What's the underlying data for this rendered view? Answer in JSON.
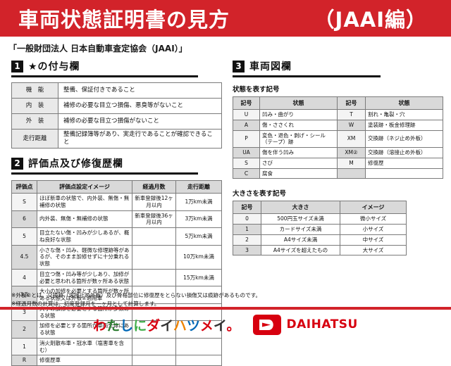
{
  "header": {
    "title": "車両状態証明書の見方",
    "edition": "（JAAI編）"
  },
  "subtitle": "「一般財団法人 日本自動車査定協会（JAAI）」",
  "sections": {
    "star": {
      "num": "1",
      "title": "★の付与欄",
      "rows": [
        [
          "機　能",
          "整備、保証付きであること"
        ],
        [
          "内　装",
          "補修の必要な目立つ損傷、悪臭等がないこと"
        ],
        [
          "外　装",
          "補修の必要な目立つ損傷がないこと"
        ],
        [
          "走行距離",
          "整備記録簿等があり、実走行であることが確認できること"
        ]
      ]
    },
    "evaluation": {
      "num": "2",
      "title": "評価点及び修復歴欄",
      "headers": [
        "評価点",
        "評価点設定イメージ",
        "経過月数",
        "走行距離"
      ],
      "rows": [
        [
          "S",
          "ほぼ新車の状態で、内外装、無傷・無補修の状態",
          "新車登録後12ヶ月以内",
          "1万km未満"
        ],
        [
          "6",
          "内外装、無傷・無補修の状態",
          "新車登録後36ヶ月以内",
          "3万km未満"
        ],
        [
          "5",
          "目立たない傷・凹みが少しあるが、概ね良好な状態",
          "",
          "5万km未満"
        ],
        [
          "4.5",
          "小さな傷・凹み、軽微な修理跡等があるが、そのまま加修せずに十分乗れる状態",
          "",
          "10万km未満"
        ],
        [
          "4",
          "目立つ傷・凹み等が少しあり、加修が必要と思われる箇所が数ヶ所ある状態",
          "",
          "15万km未満"
        ],
        [
          "3.5",
          "大小の加修を必要とする箇所が数ヶ所ある状態又は外板②適用車",
          "",
          ""
        ],
        [
          "3",
          "大小の加修を必要とする箇所が多数ある状態",
          "",
          ""
        ],
        [
          "2",
          "加修を必要とする箇所が車両全体にある状態",
          "",
          ""
        ],
        [
          "1",
          "消火剤散布車・冠水車（塩害車を含む）",
          "",
          ""
        ],
        [
          "R",
          "修復歴車",
          "",
          ""
        ]
      ]
    },
    "diagram": {
      "num": "3",
      "title": "車両図欄",
      "state_label": "状態を表す記号",
      "state_headers": [
        "記号",
        "状態",
        "記号",
        "状態"
      ],
      "state_rows": [
        [
          "U",
          "凹み・曲がり",
          "T",
          "割れ・亀裂・穴"
        ],
        [
          "A",
          "傷・ささくれ",
          "W",
          "塗装跡・板金修理跡"
        ],
        [
          "P",
          "変色・退色・剥げ・シール（テープ）跡",
          "XM",
          "交換跡（ネジ止め外板）"
        ],
        [
          "UA",
          "傷を伴う凹み",
          "XM②",
          "交換跡（溶接止め外板）"
        ],
        [
          "S",
          "さび",
          "M",
          "修復歴"
        ],
        [
          "C",
          "腐食",
          "",
          ""
        ]
      ],
      "size_label": "大きさを表す記号",
      "size_headers": [
        "記号",
        "大きさ",
        "イメージ"
      ],
      "size_rows": [
        [
          "0",
          "500円玉サイズ未満",
          "微小サイズ"
        ],
        [
          "1",
          "カードサイズ未満",
          "小サイズ"
        ],
        [
          "2",
          "A4サイズ未満",
          "中サイズ"
        ],
        [
          "3",
          "A4サイズを超えたもの",
          "大サイズ"
        ]
      ]
    }
  },
  "notes": [
    "※外板②とは、交換跡（溶接止め外板）及び骨格部位に修復歴をとらない損傷又は痕跡があるものです。",
    "※経過月数の計算は、初度登録月を一ヶ月として計算します。"
  ],
  "footer": {
    "slogan": "わたしにダイハツメイ。",
    "slogan_colors": [
      "#d7000f",
      "#2e7d32",
      "#0068b7",
      "#3fae49",
      "#d7000f",
      "#333333",
      "#f08300",
      "#0068b7",
      "#d7000f",
      "#333333",
      "#d7000f"
    ],
    "brand": "DAIHATSU"
  },
  "colors": {
    "banner_red": "#d2232a",
    "daihatsu_red": "#d7000f",
    "table_border": "#7a7a7a",
    "header_cell_gray": "#d9d9d9",
    "shade_light": "#f4f4f4",
    "shade_dark": "#d9d9d9",
    "section_black": "#111111"
  }
}
